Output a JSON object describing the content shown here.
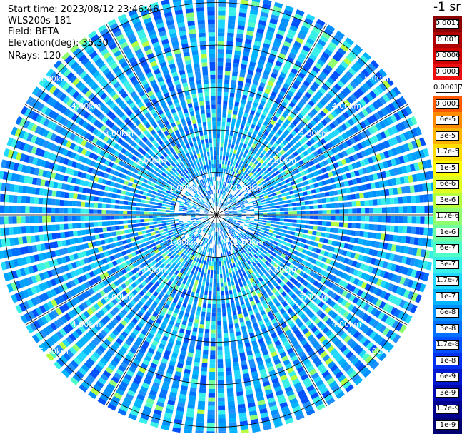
{
  "header": {
    "start_time": "Start time: 2023/08/12 23:46:46",
    "instrument": "WLS200s-181",
    "field": "Field: BETA",
    "elevation": "Elevation(deg): 35.30",
    "nrays": "NRays: 120"
  },
  "legend": {
    "title": "-1 sr",
    "entries": [
      {
        "label": "0.0017",
        "color": "#8b0000"
      },
      {
        "label": "0.001",
        "color": "#b00000"
      },
      {
        "label": "0.0006",
        "color": "#d00000"
      },
      {
        "label": "0.0003",
        "color": "#ee1010"
      },
      {
        "label": "0.00017",
        "color": "#ffffff"
      },
      {
        "label": "0.0001",
        "color": "#ff5a00"
      },
      {
        "label": "6e-5",
        "color": "#ff8c00"
      },
      {
        "label": "3e-5",
        "color": "#ffb400"
      },
      {
        "label": "1.7e-5",
        "color": "#ffdc00"
      },
      {
        "label": "1e-5",
        "color": "#ffff00"
      },
      {
        "label": "6e-6",
        "color": "#e0ff20"
      },
      {
        "label": "3e-6",
        "color": "#b4ff40"
      },
      {
        "label": "1.7e-6",
        "color": "#90ff70"
      },
      {
        "label": "1e-6",
        "color": "#70ffa0"
      },
      {
        "label": "6e-7",
        "color": "#50ffc8"
      },
      {
        "label": "3e-7",
        "color": "#38f0e8"
      },
      {
        "label": "1.7e-7",
        "color": "#20d8ff"
      },
      {
        "label": "1e-7",
        "color": "#00b4ff"
      },
      {
        "label": "6e-8",
        "color": "#0090ff"
      },
      {
        "label": "3e-8",
        "color": "#0070ff"
      },
      {
        "label": "1.7e-8",
        "color": "#0050ff"
      },
      {
        "label": "1e-8",
        "color": "#0030f0"
      },
      {
        "label": "6e-9",
        "color": "#0018d0"
      },
      {
        "label": "3e-9",
        "color": "#0008b0"
      },
      {
        "label": "1.7e-9",
        "color": "#000090"
      },
      {
        "label": "1e-9",
        "color": "#000070"
      }
    ]
  },
  "chart_data": {
    "type": "heatmap",
    "projection": "polar-ppi",
    "field": "BETA",
    "n_rays": 120,
    "range_rings_km": [
      1,
      2,
      3,
      4,
      5
    ],
    "ring_labels": [
      "1.00km",
      "2.00km",
      "3.00km",
      "4.00km",
      "5.00km"
    ],
    "max_range_km": 5.2,
    "azimuth_lines_deg": [
      0,
      30,
      60,
      90,
      120,
      150,
      180,
      210,
      240,
      270,
      300,
      330
    ],
    "dominant_value_range": [
      "1e-8",
      "3e-7"
    ],
    "colors": {
      "background_typical": "#1e90ff",
      "ring_color": "#000000",
      "label_color": "#ffffff"
    }
  }
}
